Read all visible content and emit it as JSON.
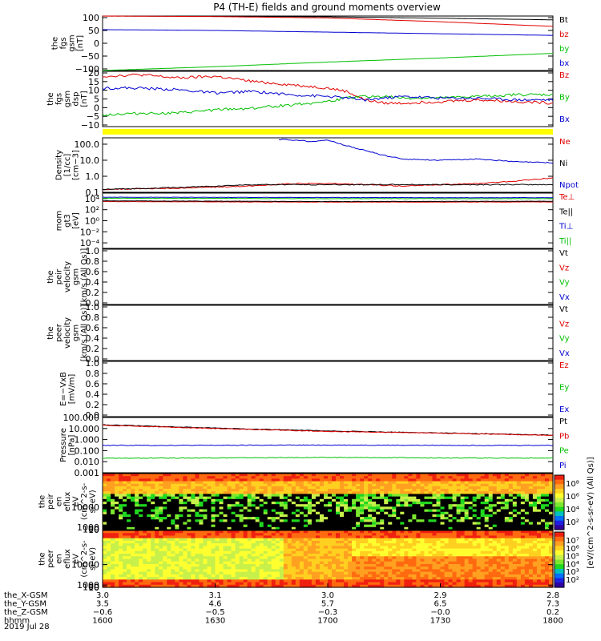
{
  "title": "P4 (TH-E) fields and ground moments overview",
  "date_label": "2019 Jul 28",
  "colors": {
    "black": "#000000",
    "red": "#e00000",
    "green": "#00c000",
    "blue": "#0000d0",
    "yellow": "#ffff00"
  },
  "chart_data": [
    {
      "type": "line",
      "id": "fgs_gsm",
      "ylabel": [
        "the",
        "fgs",
        "gsm",
        "[nT]"
      ],
      "ylim": [
        -100,
        100
      ],
      "yticks": [
        "100",
        "50",
        "0",
        "−50",
        "−100"
      ],
      "series": [
        {
          "name": "Bt",
          "color": "#000000",
          "x": [
            0,
            30,
            60,
            90,
            120
          ],
          "values": [
            100,
            99,
            97,
            92,
            86
          ]
        },
        {
          "name": "bz",
          "color": "#e00000",
          "x": [
            0,
            30,
            60,
            90,
            120
          ],
          "values": [
            100,
            98,
            93,
            79,
            62
          ]
        },
        {
          "name": "by",
          "color": "#00c000",
          "x": [
            0,
            30,
            60,
            90,
            120
          ],
          "values": [
            -100,
            -86,
            -69,
            -54,
            -37
          ]
        },
        {
          "name": "bx",
          "color": "#0000d0",
          "x": [
            0,
            30,
            60,
            90,
            120
          ],
          "values": [
            50,
            47,
            41,
            35,
            29
          ]
        }
      ]
    },
    {
      "type": "line",
      "id": "fgs_gsm_dsp",
      "ylabel": [
        "the",
        "fgs",
        "gsm",
        "dsp",
        "[nT]"
      ],
      "ylim": [
        -13,
        20
      ],
      "yticks": [
        "20",
        "15",
        "10",
        "5",
        "0",
        "−5",
        "−10"
      ],
      "series": [
        {
          "name": "Bz",
          "color": "#e00000",
          "x": [
            0,
            10,
            20,
            30,
            40,
            50,
            60,
            65,
            70,
            75,
            80,
            90,
            100,
            110,
            120
          ],
          "values": [
            17,
            18,
            16,
            17,
            14,
            12,
            10,
            8,
            3,
            1,
            1,
            2,
            3,
            2,
            1
          ]
        },
        {
          "name": "By",
          "color": "#00c000",
          "x": [
            0,
            10,
            20,
            30,
            40,
            50,
            60,
            65,
            70,
            75,
            80,
            90,
            100,
            110,
            120
          ],
          "values": [
            -6,
            -5,
            -5,
            -3,
            -2,
            0,
            2,
            4,
            5,
            5,
            4,
            4,
            5,
            6,
            6
          ]
        },
        {
          "name": "Bx",
          "color": "#0000d0",
          "x": [
            0,
            10,
            20,
            30,
            40,
            50,
            60,
            65,
            70,
            75,
            80,
            90,
            100,
            110,
            120
          ],
          "values": [
            10,
            10,
            9,
            7,
            8,
            6,
            5,
            4,
            3,
            4,
            5,
            4,
            4,
            3,
            3
          ]
        }
      ]
    },
    {
      "type": "line",
      "id": "density",
      "log": true,
      "ylabel": [
        "Density",
        "[1/cc]",
        "[cm−3]"
      ],
      "ylim": [
        0.1,
        250
      ],
      "yticks": [
        "100.0",
        "10.0",
        "1.0",
        "0.1"
      ],
      "ytick_values": [
        100,
        10,
        1,
        0.1
      ],
      "series": [
        {
          "name": "Ne",
          "color": "#e00000",
          "x": [
            0,
            20,
            40,
            50,
            60,
            70,
            80,
            90,
            100,
            110,
            120
          ],
          "values": [
            0.15,
            0.18,
            0.25,
            0.35,
            0.35,
            0.3,
            0.25,
            0.3,
            0.35,
            0.5,
            0.8
          ]
        },
        {
          "name": "Ni",
          "color": "#000000",
          "x": [
            0,
            20,
            40,
            60,
            80,
            100,
            120
          ],
          "values": [
            0.15,
            0.2,
            0.3,
            0.3,
            0.3,
            0.3,
            0.3
          ]
        },
        {
          "name": "Npot",
          "color": "#0000d0",
          "x": [
            47,
            52,
            55,
            60,
            65,
            70,
            75,
            80,
            90,
            100,
            110,
            120
          ],
          "values": [
            200,
            180,
            150,
            180,
            80,
            40,
            20,
            12,
            10,
            12,
            8,
            7
          ]
        }
      ]
    },
    {
      "type": "line",
      "id": "moments",
      "log": true,
      "ylabel": [
        "mom",
        "gt3",
        "[eV]"
      ],
      "ylim": [
        1e-05,
        100000
      ],
      "yticks": [
        "10⁴",
        "10²",
        "10⁰",
        "10⁻²",
        "10⁻⁴"
      ],
      "ytick_values": [
        10000,
        100,
        1,
        0.01,
        0.0001
      ],
      "series": [
        {
          "name": "Te⊥",
          "color": "#e00000",
          "x": [
            0,
            30,
            60,
            90,
            120
          ],
          "values": [
            3000,
            2600,
            2400,
            2400,
            2600
          ]
        },
        {
          "name": "Te||",
          "color": "#000000",
          "x": [
            0,
            30,
            60,
            90,
            120
          ],
          "values": [
            4000,
            3500,
            3000,
            3200,
            3400
          ]
        },
        {
          "name": "Ti⊥",
          "color": "#0000d0",
          "x": [
            0,
            30,
            60,
            90,
            120
          ],
          "values": [
            18000,
            17000,
            16000,
            15000,
            15000
          ]
        },
        {
          "name": "Ti||",
          "color": "#00c000",
          "x": [
            0,
            30,
            60,
            90,
            120
          ],
          "values": [
            12000,
            11000,
            10000,
            10000,
            10000
          ]
        }
      ]
    },
    {
      "type": "line",
      "id": "peir_velocity",
      "ylabel": [
        "the",
        "peir",
        "velocity",
        "gsm",
        "[km/s (All Qs)]"
      ],
      "ylim": [
        0,
        1
      ],
      "yticks": [
        "1.0",
        "0.8",
        "0.6",
        "0.4",
        "0.2",
        "0.0"
      ],
      "series": [
        {
          "name": "Vt",
          "color": "#000000",
          "values": []
        },
        {
          "name": "Vz",
          "color": "#e00000",
          "values": []
        },
        {
          "name": "Vy",
          "color": "#00c000",
          "values": []
        },
        {
          "name": "Vx",
          "color": "#0000d0",
          "values": []
        }
      ]
    },
    {
      "type": "line",
      "id": "peer_velocity",
      "ylabel": [
        "the",
        "peer",
        "velocity",
        "gsm",
        "[km/s (All Qs)]"
      ],
      "ylim": [
        0,
        1
      ],
      "yticks": [
        "1.0",
        "0.8",
        "0.6",
        "0.4",
        "0.2",
        "0.0"
      ],
      "series": [
        {
          "name": "Vt",
          "color": "#000000",
          "values": []
        },
        {
          "name": "Vz",
          "color": "#e00000",
          "values": []
        },
        {
          "name": "Vy",
          "color": "#00c000",
          "values": []
        },
        {
          "name": "Vx",
          "color": "#0000d0",
          "values": []
        }
      ]
    },
    {
      "type": "line",
      "id": "efield",
      "ylabel": [
        "E=−VxB",
        "[mV/m]"
      ],
      "ylim": [
        0,
        1
      ],
      "yticks": [
        "1.0",
        "0.8",
        "0.6",
        "0.4",
        "0.2",
        "0.0"
      ],
      "series": [
        {
          "name": "Ez",
          "color": "#e00000",
          "values": []
        },
        {
          "name": "Ey",
          "color": "#00c000",
          "values": []
        },
        {
          "name": "Ex",
          "color": "#0000d0",
          "values": []
        }
      ]
    },
    {
      "type": "line",
      "id": "pressure",
      "log": true,
      "ylabel": [
        "Pressure",
        "[nPa]"
      ],
      "ylim": [
        0.001,
        100
      ],
      "yticks": [
        "100.000",
        "10.000",
        "1.000",
        "0.100",
        "0.010",
        "0.001"
      ],
      "ytick_values": [
        100,
        10,
        1,
        0.1,
        0.01,
        0.001
      ],
      "series": [
        {
          "name": "Pt",
          "color": "#000000",
          "x": [
            0,
            30,
            60,
            90,
            120
          ],
          "values": [
            22,
            11,
            6,
            4,
            2.5
          ]
        },
        {
          "name": "Pb",
          "color": "#e00000",
          "x": [
            0,
            30,
            60,
            90,
            120
          ],
          "values": [
            20,
            10,
            5.5,
            3.8,
            2.4
          ]
        },
        {
          "name": "Pe",
          "color": "#00c000",
          "x": [
            0,
            30,
            60,
            90,
            120
          ],
          "values": [
            0.02,
            0.022,
            0.024,
            0.022,
            0.021
          ]
        },
        {
          "name": "Pi",
          "color": "#0000d0",
          "x": [
            0,
            30,
            60,
            90,
            120
          ],
          "values": [
            0.3,
            0.3,
            0.32,
            0.3,
            0.3
          ]
        }
      ]
    },
    {
      "type": "heatmap",
      "id": "peir_eflux",
      "ylabel": [
        "the",
        "peir",
        "en",
        "eflux",
        "eV",
        "(cm^2-s-",
        "sr-eV)"
      ],
      "ylim": [
        7,
        25000
      ],
      "yticks": [
        "10000",
        "1000",
        "100",
        "10"
      ],
      "ytick_values": [
        10000,
        1000,
        100,
        10
      ]
    },
    {
      "type": "heatmap",
      "id": "peer_eflux",
      "ylabel": [
        "the",
        "peer",
        "en",
        "eflux",
        "eV",
        "(cm^2-s-",
        "sr-eV)"
      ],
      "ylim": [
        7,
        25000
      ],
      "yticks": [
        "10000",
        "1000",
        "100",
        "10"
      ],
      "ytick_values": [
        10000,
        1000,
        100,
        10
      ]
    }
  ],
  "colorbar": {
    "label": "[eV/(cm^2-s-sr-eV) (All Qs)]",
    "upper_ticks": [
      "10⁸",
      "10⁶",
      "10⁴",
      "10²"
    ],
    "lower_ticks": [
      "10⁷",
      "10⁶",
      "10⁵",
      "10⁴",
      "10³",
      "10²"
    ]
  },
  "xaxis": {
    "row_labels": [
      "the_X-GSM",
      "the_Y-GSM",
      "the_Z-GSM",
      "hhmm"
    ],
    "columns": [
      [
        "3.0",
        "3.5",
        "−0.6",
        "1600"
      ],
      [
        "3.1",
        "4.6",
        "−0.5",
        "1630"
      ],
      [
        "3.0",
        "5.7",
        "−0.3",
        "1700"
      ],
      [
        "2.9",
        "6.5",
        "−0.0",
        "1730"
      ],
      [
        "2.8",
        "7.3",
        "0.2",
        "1800"
      ]
    ]
  }
}
